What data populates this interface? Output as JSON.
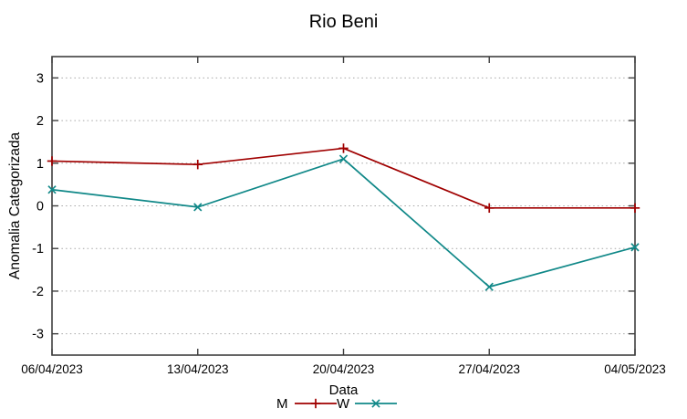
{
  "chart_data": {
    "type": "line",
    "title": "Rio Beni",
    "xlabel": "Data",
    "ylabel": "Anomalia Categorizada",
    "categories": [
      "06/04/2023",
      "13/04/2023",
      "20/04/2023",
      "27/04/2023",
      "04/05/2023"
    ],
    "series": [
      {
        "name": "M",
        "color": "#a00000",
        "marker": "plus",
        "values": [
          1.05,
          0.97,
          1.35,
          -0.05,
          -0.05
        ]
      },
      {
        "name": "W",
        "color": "#108888",
        "marker": "cross",
        "values": [
          0.38,
          -0.03,
          1.1,
          -1.9,
          -0.97
        ]
      }
    ],
    "ylim": [
      -3.5,
      3.5
    ],
    "yticks": [
      -3,
      -2,
      -1,
      0,
      1,
      2,
      3
    ],
    "grid": "horizontal-dotted",
    "legend_position": "bottom-center",
    "colors": {
      "background": "#ffffff",
      "axis": "#3f3f3f",
      "grid": "#a6a6a6",
      "text": "#000000"
    }
  }
}
